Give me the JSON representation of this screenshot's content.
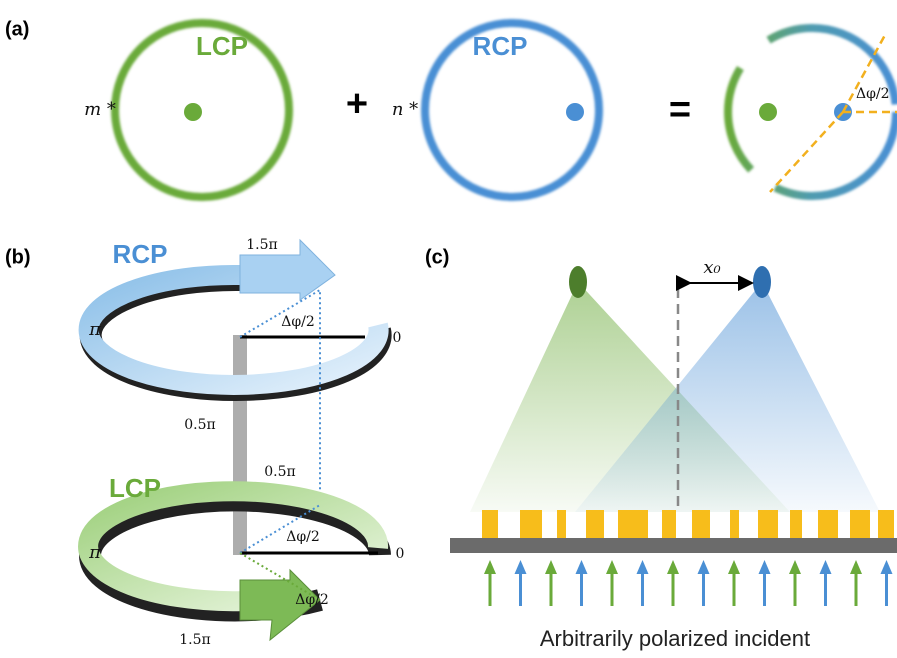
{
  "panel_a": {
    "label": "(a)",
    "lcp": "LCP",
    "rcp": "RCP",
    "m_coef": "m *",
    "plus": "+",
    "n_coef": "n *",
    "equals": "=",
    "angle": "Δφ/2"
  },
  "panel_b": {
    "label": "(b)",
    "rcp": "RCP",
    "rcp_1_5pi": "1.5π",
    "rcp_pi": "π",
    "rcp_angle": "Δφ/2",
    "rcp_0": "0",
    "rcp_0_5pi": "0.5π",
    "lcp": "LCP",
    "lcp_0_5pi": "0.5π",
    "lcp_pi": "π",
    "lcp_angle": "Δφ/2",
    "lcp_0": "0",
    "lcp_angle_2": "Δφ/2",
    "lcp_1_5pi": "1.5π"
  },
  "panel_c": {
    "label": "(c)",
    "shift": "x₀",
    "caption": "Arbitrarily polarized incident"
  }
}
